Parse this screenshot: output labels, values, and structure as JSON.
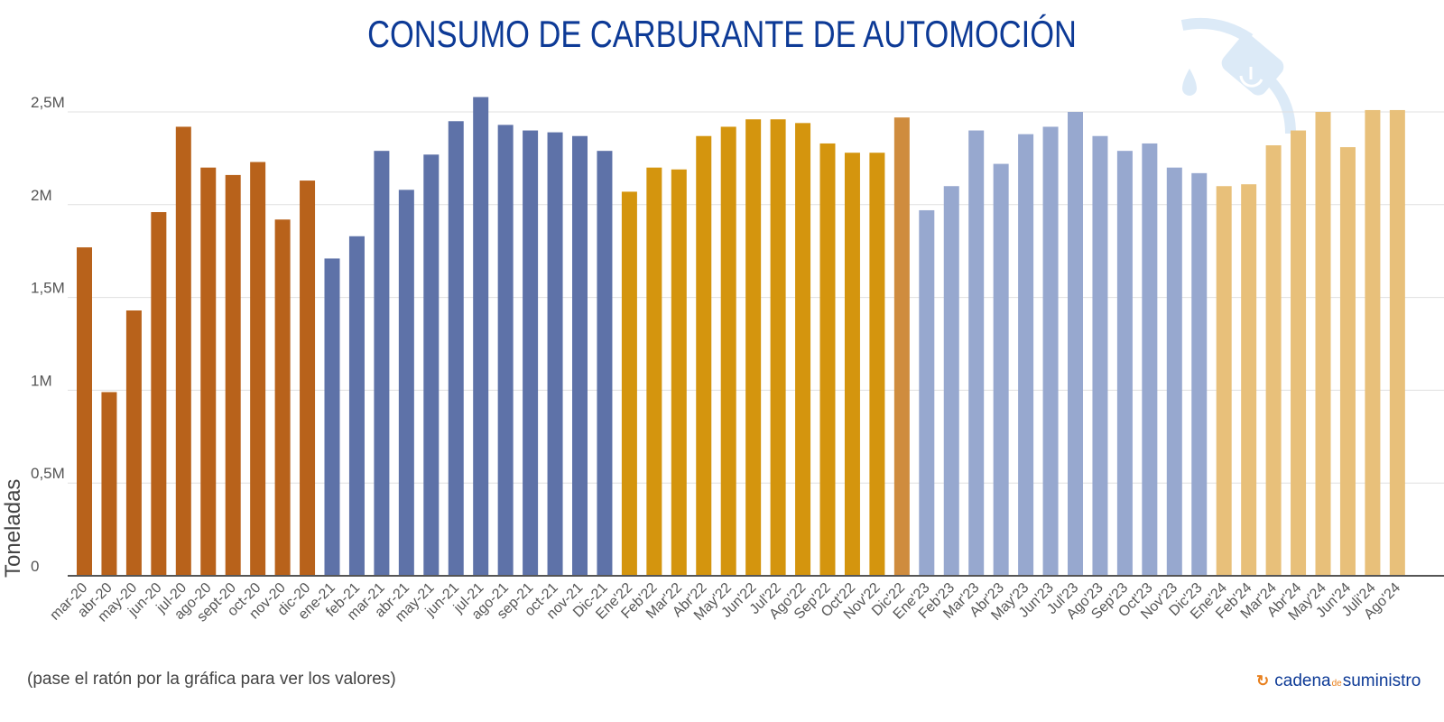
{
  "header": {
    "title": "CONSUMO DE CARBURANTE DE AUTOMOCIÓN",
    "decor_icon": "fuel-pump-icon"
  },
  "footer": {
    "hint": "(pase el ratón por la gráfica para ver los valores)",
    "logo_main": "cadena",
    "logo_de": "de",
    "logo_end": "suministro",
    "logo_icon": "refresh-arrows-icon"
  },
  "colors": {
    "y2020": "#B8621B",
    "y2021": "#5E72A8",
    "y2022": "#D4950E",
    "dic22": "#CF8C3E",
    "y2023": "#97A8CF",
    "y2024": "#E8C07A",
    "title": "#0D3A96",
    "pump": "#DCEAF7"
  },
  "chart_data": {
    "type": "bar",
    "title": "CONSUMO DE CARBURANTE DE AUTOMOCIÓN",
    "xlabel": "",
    "ylabel": "Toneladas",
    "ylim": [
      0,
      2500000
    ],
    "yticks": [
      0,
      500000,
      1000000,
      1500000,
      2000000,
      2500000
    ],
    "ytick_labels": [
      "0",
      "0,5M",
      "1M",
      "1,5M",
      "2M",
      "2,5M"
    ],
    "grid": true,
    "legend": "none",
    "categories": [
      "mar-20",
      "abr-20",
      "may-20",
      "jun-20",
      "jul-20",
      "ago-20",
      "sept-20",
      "oct-20",
      "nov-20",
      "dic-20",
      "ene-21",
      "feb-21",
      "mar-21",
      "abr-21",
      "may-21",
      "jun-21",
      "jul-21",
      "ago-21",
      "sep-21",
      "oct-21",
      "nov-21",
      "Dic-21",
      "Ene'22",
      "Feb'22",
      "Mar'22",
      "Abr'22",
      "May'22",
      "Jun'22",
      "Jul'22",
      "Ago'22",
      "Sep'22",
      "Oct'22",
      "Nov'22",
      "Dic'22",
      "Ene'23",
      "Feb'23",
      "Mar'23",
      "Abr'23",
      "May'23",
      "Jun'23",
      "Jul'23",
      "Ago'23",
      "Sep'23",
      "Oct'23",
      "Nov'23",
      "Dic'23",
      "Ene'24",
      "Feb'24",
      "Mar'24",
      "Abr'24",
      "May'24",
      "Jun'24",
      "Juli'24",
      "Ago'24"
    ],
    "values": [
      1770000,
      990000,
      1430000,
      1960000,
      2420000,
      2200000,
      2160000,
      2230000,
      1920000,
      2130000,
      1710000,
      1830000,
      2290000,
      2080000,
      2270000,
      2450000,
      2580000,
      2430000,
      2400000,
      2390000,
      2370000,
      2290000,
      2070000,
      2200000,
      2190000,
      2370000,
      2420000,
      2460000,
      2460000,
      2440000,
      2330000,
      2280000,
      2280000,
      2470000,
      1970000,
      2100000,
      2400000,
      2220000,
      2380000,
      2420000,
      2500000,
      2370000,
      2290000,
      2330000,
      2200000,
      2170000,
      2100000,
      2110000,
      2320000,
      2400000,
      2500000,
      2310000,
      2510000,
      2510000
    ],
    "color_groups": [
      "y2020",
      "y2020",
      "y2020",
      "y2020",
      "y2020",
      "y2020",
      "y2020",
      "y2020",
      "y2020",
      "y2020",
      "y2021",
      "y2021",
      "y2021",
      "y2021",
      "y2021",
      "y2021",
      "y2021",
      "y2021",
      "y2021",
      "y2021",
      "y2021",
      "y2021",
      "y2022",
      "y2022",
      "y2022",
      "y2022",
      "y2022",
      "y2022",
      "y2022",
      "y2022",
      "y2022",
      "y2022",
      "y2022",
      "dic22",
      "y2023",
      "y2023",
      "y2023",
      "y2023",
      "y2023",
      "y2023",
      "y2023",
      "y2023",
      "y2023",
      "y2023",
      "y2023",
      "y2023",
      "y2024",
      "y2024",
      "y2024",
      "y2024",
      "y2024",
      "y2024",
      "y2024",
      "y2024"
    ]
  }
}
